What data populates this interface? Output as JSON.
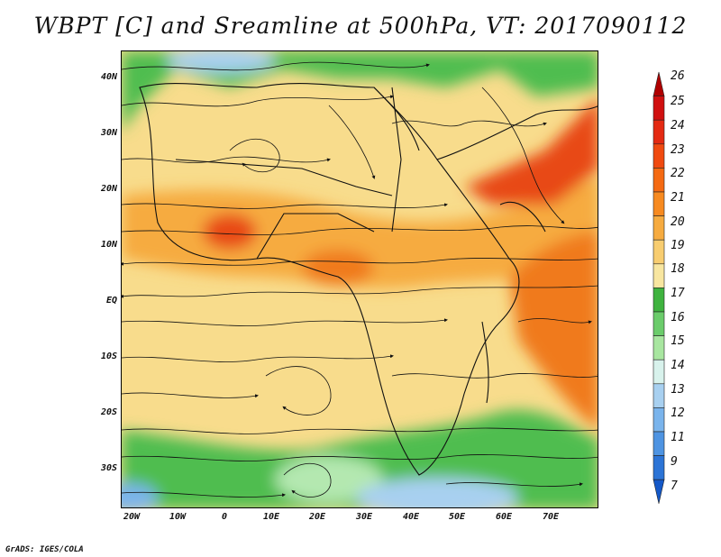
{
  "title": "WBPT [C] and Sreamline at 500hPa, VT: 2017090112",
  "lat_labels": [
    "40N",
    "30N",
    "20N",
    "10N",
    "EQ",
    "10S",
    "20S",
    "30S"
  ],
  "lon_labels": [
    "20W",
    "10W",
    "0",
    "10E",
    "20E",
    "30E",
    "40E",
    "50E",
    "60E",
    "70E"
  ],
  "colorbar": {
    "labels": [
      "26",
      "25",
      "24",
      "23",
      "22",
      "21",
      "20",
      "19",
      "18",
      "17",
      "16",
      "15",
      "14",
      "13",
      "12",
      "11",
      "9",
      "7"
    ],
    "colors": [
      "#b00000",
      "#d01010",
      "#e42a12",
      "#f04a10",
      "#f56a12",
      "#f78a20",
      "#f6ab40",
      "#f8cd70",
      "#f8e6a0",
      "#3fb33f",
      "#6bcc6b",
      "#a8e6a0",
      "#d8f2ec",
      "#a8d0f0",
      "#7ab4ec",
      "#4e94e2",
      "#2c74d6",
      "#1458c8"
    ]
  },
  "credit": "GrADS: IGES/COLA"
}
